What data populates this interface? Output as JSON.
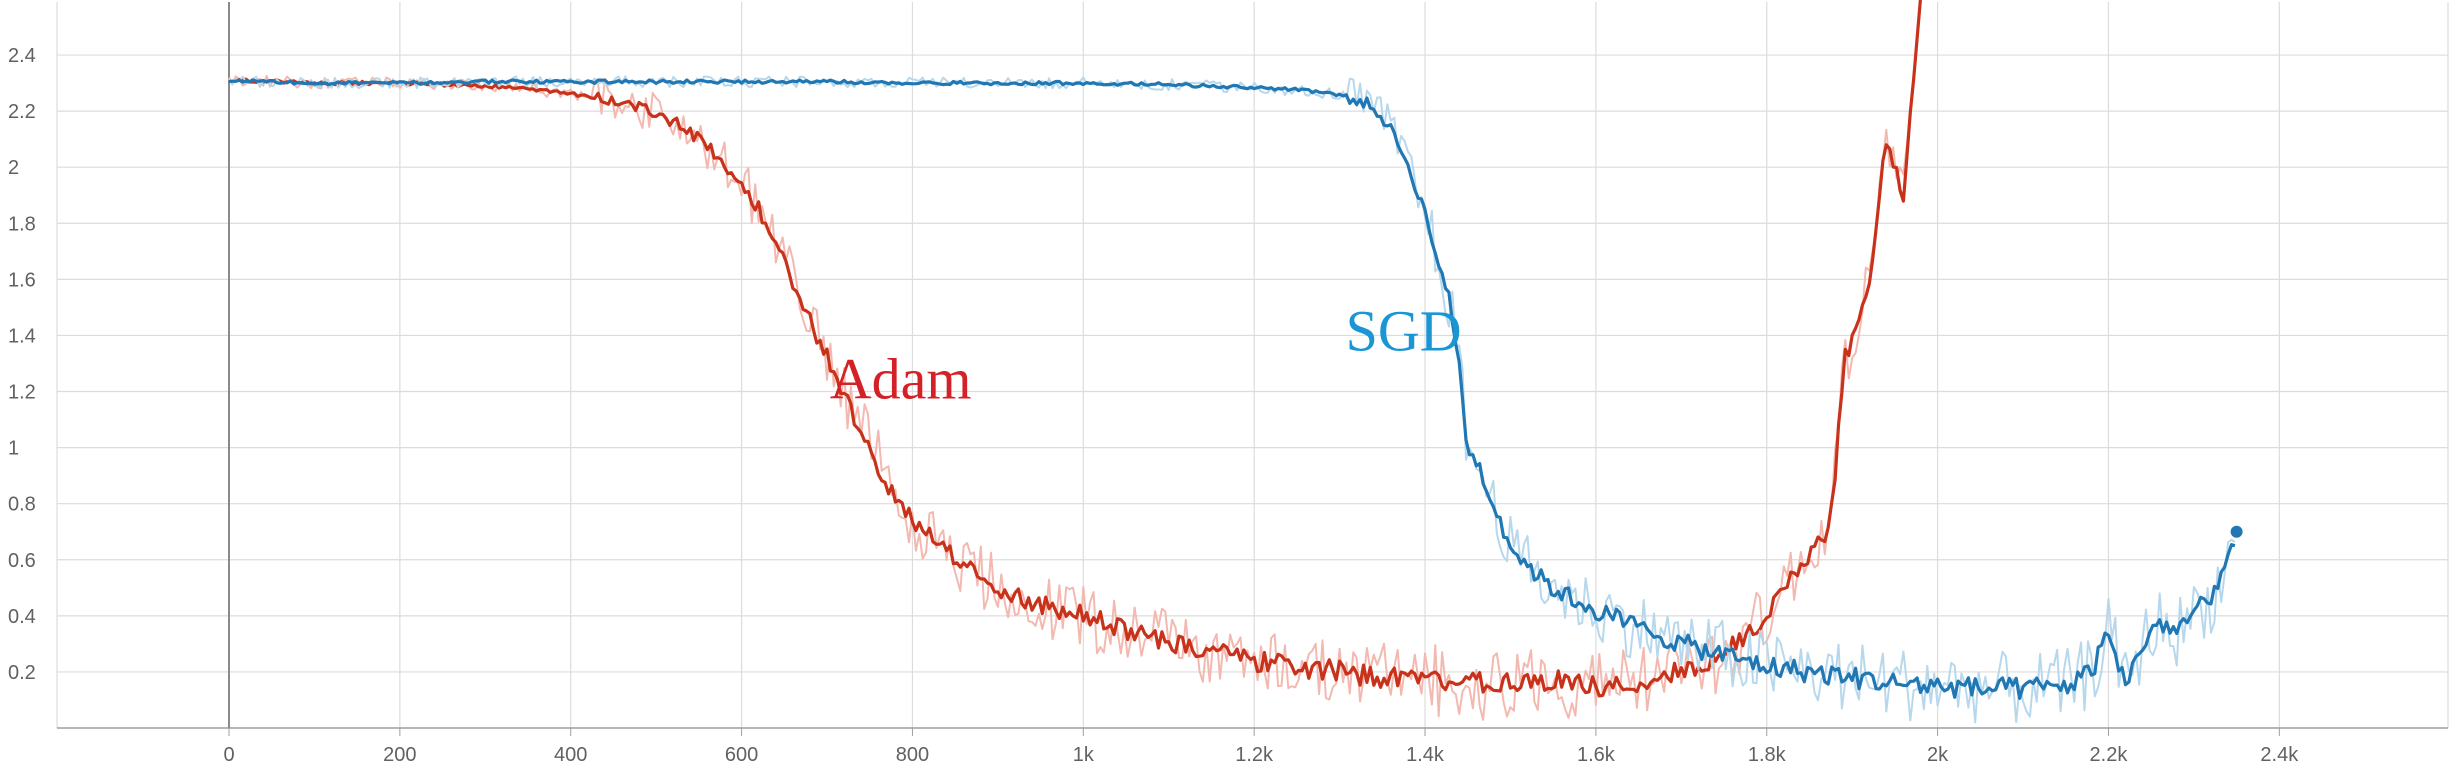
{
  "chart_data": {
    "type": "line",
    "title": "",
    "xlabel": "",
    "ylabel": "",
    "xlim": [
      -200,
      2600
    ],
    "ylim": [
      0,
      2.6
    ],
    "grid": true,
    "x_ticks": [
      0,
      200,
      400,
      600,
      800,
      1000,
      1200,
      1400,
      1600,
      1800,
      2000,
      2200,
      2400
    ],
    "x_tick_labels": [
      "0",
      "200",
      "400",
      "600",
      "800",
      "1k",
      "1.2k",
      "1.4k",
      "1.6k",
      "1.8k",
      "2k",
      "2.2k",
      "2.4k"
    ],
    "y_ticks": [
      0.2,
      0.4,
      0.6,
      0.8,
      1.0,
      1.2,
      1.4,
      1.6,
      1.8,
      2.0,
      2.2,
      2.4
    ],
    "y_tick_labels": [
      "0.2",
      "0.4",
      "0.6",
      "0.8",
      "1",
      "1.2",
      "1.4",
      "1.6",
      "1.8",
      "2",
      "2.2",
      "2.4"
    ],
    "series": [
      {
        "name": "Adam",
        "color": "#c8321a",
        "raw_color": "#f3b9b0",
        "x": [
          0,
          50,
          100,
          150,
          200,
          250,
          300,
          350,
          400,
          450,
          500,
          550,
          600,
          630,
          660,
          680,
          700,
          720,
          740,
          760,
          780,
          800,
          850,
          900,
          950,
          1000,
          1050,
          1100,
          1150,
          1200,
          1250,
          1300,
          1350,
          1400,
          1450,
          1500,
          1550,
          1600,
          1650,
          1700,
          1750,
          1800,
          1830,
          1850,
          1870,
          1880,
          1890,
          1900,
          1920,
          1940,
          1960,
          1980
        ],
        "values": [
          2.31,
          2.305,
          2.3,
          2.3,
          2.3,
          2.295,
          2.29,
          2.28,
          2.26,
          2.24,
          2.2,
          2.1,
          1.95,
          1.8,
          1.6,
          1.45,
          1.32,
          1.18,
          1.05,
          0.92,
          0.82,
          0.74,
          0.6,
          0.5,
          0.44,
          0.4,
          0.35,
          0.31,
          0.27,
          0.24,
          0.22,
          0.2,
          0.18,
          0.17,
          0.16,
          0.16,
          0.17,
          0.15,
          0.16,
          0.2,
          0.26,
          0.4,
          0.55,
          0.62,
          0.7,
          0.9,
          1.3,
          1.4,
          1.6,
          2.1,
          1.9,
          2.6
        ]
      },
      {
        "name": "SGD",
        "color": "#1f77b4",
        "raw_color": "#b7d8ec",
        "x": [
          0,
          100,
          200,
          300,
          400,
          500,
          600,
          700,
          800,
          900,
          1000,
          1100,
          1200,
          1250,
          1300,
          1330,
          1350,
          1370,
          1390,
          1410,
          1420,
          1430,
          1440,
          1450,
          1460,
          1480,
          1500,
          1520,
          1540,
          1560,
          1600,
          1650,
          1700,
          1750,
          1800,
          1850,
          1900,
          1950,
          2000,
          2050,
          2100,
          2150,
          2180,
          2200,
          2220,
          2240,
          2260,
          2280,
          2300,
          2320,
          2340,
          2350
        ],
        "values": [
          2.31,
          2.3,
          2.3,
          2.305,
          2.305,
          2.305,
          2.305,
          2.305,
          2.3,
          2.3,
          2.3,
          2.295,
          2.285,
          2.275,
          2.26,
          2.23,
          2.18,
          2.08,
          1.93,
          1.73,
          1.62,
          1.5,
          1.28,
          1.0,
          0.95,
          0.8,
          0.65,
          0.58,
          0.52,
          0.48,
          0.42,
          0.36,
          0.3,
          0.26,
          0.22,
          0.2,
          0.18,
          0.16,
          0.15,
          0.14,
          0.14,
          0.15,
          0.2,
          0.35,
          0.15,
          0.3,
          0.38,
          0.34,
          0.42,
          0.45,
          0.6,
          0.7
        ]
      }
    ],
    "annotations": [
      {
        "text": "Adam",
        "color": "#d42027",
        "x": 600,
        "y": 1.24
      },
      {
        "text": "SGD",
        "color": "#1a96d4",
        "x": 1300,
        "y": 1.41
      }
    ],
    "end_marker": {
      "series": "SGD",
      "x": 2350,
      "y": 0.7
    }
  }
}
